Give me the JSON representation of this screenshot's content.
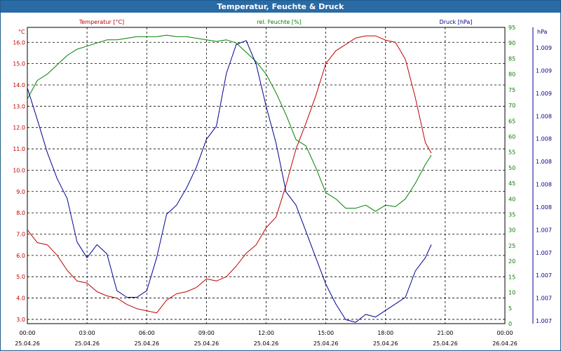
{
  "chart_data": {
    "type": "line",
    "title": "Temperatur, Feuchte & Druck",
    "x_ticks": [
      {
        "time": "00:00",
        "date": "25.04.26"
      },
      {
        "time": "03:00",
        "date": "25.04.26"
      },
      {
        "time": "06:00",
        "date": "25.04.26"
      },
      {
        "time": "09:00",
        "date": "25.04.26"
      },
      {
        "time": "12:00",
        "date": "25.04.26"
      },
      {
        "time": "15:00",
        "date": "25.04.26"
      },
      {
        "time": "18:00",
        "date": "25.04.26"
      },
      {
        "time": "21:00",
        "date": "25.04.26"
      },
      {
        "time": "00:00",
        "date": "26.04.26"
      }
    ],
    "x_range_hours": [
      0,
      24
    ],
    "axes": {
      "temperature": {
        "label": "Temperatur [°C]",
        "unit": "°C",
        "color": "#c00000",
        "range": [
          2.8,
          16.7
        ],
        "ticks": [
          "3.0",
          "4.0",
          "5.0",
          "6.0",
          "7.0",
          "8.0",
          "9.0",
          "10.0",
          "11.0",
          "12.0",
          "13.0",
          "14.0",
          "15.0",
          "16.0"
        ]
      },
      "humidity": {
        "label": "rel. Feuchte [%]",
        "unit": "%",
        "color": "#008000",
        "range": [
          0,
          95
        ],
        "ticks": [
          "0",
          "5",
          "10",
          "15",
          "20",
          "25",
          "30",
          "35",
          "40",
          "45",
          "50",
          "55",
          "60",
          "65",
          "70",
          "75",
          "80",
          "85",
          "90",
          "95"
        ]
      },
      "pressure": {
        "label": "Druck [hPa]",
        "unit": "hPa",
        "color": "#000090",
        "range": [
          1006.95,
          1009.2
        ],
        "tick_labels": [
          "1.007",
          "1.007",
          "1.007",
          "1.007",
          "1.007",
          "1.008",
          "1.008",
          "1.008",
          "1.008",
          "1.008",
          "1.009",
          "1.009",
          "1.009"
        ]
      }
    },
    "series": [
      {
        "name": "Temperatur",
        "axis": "temperature",
        "color": "#c00000",
        "x": [
          0,
          0.5,
          1,
          1.5,
          2,
          2.5,
          3,
          3.5,
          4,
          4.5,
          5,
          5.5,
          6,
          6.5,
          7,
          7.5,
          8,
          8.5,
          9,
          9.5,
          10,
          10.5,
          11,
          11.5,
          12,
          12.5,
          13,
          13.5,
          14,
          14.5,
          15,
          15.5,
          16,
          16.5,
          17,
          17.5,
          18,
          18.5,
          19,
          19.5,
          20,
          20.3
        ],
        "values": [
          7.2,
          6.6,
          6.5,
          6.0,
          5.3,
          4.8,
          4.7,
          4.3,
          4.1,
          4.0,
          3.7,
          3.5,
          3.4,
          3.3,
          3.9,
          4.2,
          4.3,
          4.5,
          4.9,
          4.8,
          5.0,
          5.5,
          6.1,
          6.5,
          7.3,
          7.8,
          9.3,
          11.0,
          12.2,
          13.5,
          15.0,
          15.6,
          15.9,
          16.2,
          16.3,
          16.3,
          16.1,
          16.0,
          15.2,
          13.4,
          11.3,
          10.8
        ]
      },
      {
        "name": "rel. Feuchte",
        "axis": "humidity",
        "color": "#008000",
        "x": [
          0,
          0.5,
          1,
          1.5,
          2,
          2.5,
          3,
          3.5,
          4,
          4.5,
          5,
          5.5,
          6,
          6.5,
          7,
          7.5,
          8,
          8.5,
          9,
          9.5,
          10,
          10.5,
          11,
          11.5,
          12,
          12.5,
          13,
          13.5,
          14,
          14.5,
          15,
          15.5,
          16,
          16.5,
          17,
          17.5,
          18,
          18.5,
          19,
          19.5,
          20,
          20.3
        ],
        "values": [
          72,
          78,
          80,
          83,
          86,
          88,
          89,
          90,
          91,
          91,
          91.5,
          92,
          92,
          92,
          92.5,
          92,
          92,
          91.5,
          91,
          90.5,
          91,
          90,
          87,
          84,
          80,
          74,
          67,
          59,
          57,
          50,
          42,
          40,
          37,
          37,
          38,
          36,
          38,
          37.5,
          40,
          45,
          51,
          54
        ]
      },
      {
        "name": "Druck",
        "axis": "pressure",
        "color": "#000090",
        "x": [
          0,
          0.5,
          1,
          1.5,
          2,
          2.5,
          3,
          3.5,
          4,
          4.5,
          5,
          5.5,
          6,
          6.5,
          7,
          7.5,
          8,
          8.5,
          9,
          9.5,
          10,
          10.5,
          11,
          11.5,
          12,
          12.5,
          13,
          13.5,
          14,
          14.5,
          15,
          15.5,
          16,
          16.5,
          17,
          17.5,
          18,
          18.5,
          19,
          19.5,
          20,
          20.3
        ],
        "values": [
          1008.74,
          1008.5,
          1008.25,
          1008.05,
          1007.9,
          1007.57,
          1007.45,
          1007.55,
          1007.48,
          1007.2,
          1007.15,
          1007.15,
          1007.2,
          1007.45,
          1007.78,
          1007.85,
          1007.98,
          1008.14,
          1008.35,
          1008.45,
          1008.85,
          1009.07,
          1009.1,
          1008.92,
          1008.6,
          1008.32,
          1007.95,
          1007.85,
          1007.65,
          1007.45,
          1007.25,
          1007.1,
          1006.98,
          1006.96,
          1007.02,
          1007.0,
          1007.05,
          1007.1,
          1007.15,
          1007.35,
          1007.45,
          1007.55
        ]
      }
    ],
    "grid": true
  }
}
